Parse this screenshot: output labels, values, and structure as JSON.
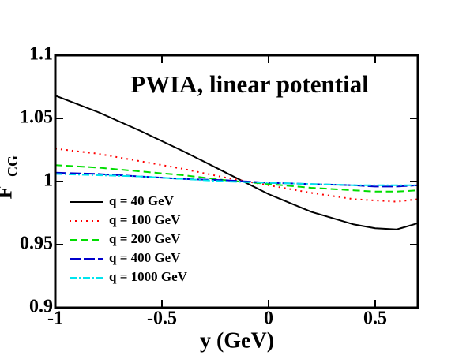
{
  "chart_data": {
    "type": "line",
    "title": "PWIA, linear potential",
    "xlabel": "y (GeV)",
    "ylabel": "F",
    "ylabel_sub": "CG",
    "x": [
      -1,
      -0.8,
      -0.6,
      -0.4,
      -0.2,
      0,
      0.2,
      0.4,
      0.5,
      0.6,
      0.7
    ],
    "series": [
      {
        "name": "q = 40 GeV",
        "color": "#000000",
        "dash": "none",
        "values": [
          1.068,
          1.055,
          1.04,
          1.024,
          1.007,
          0.99,
          0.976,
          0.966,
          0.963,
          0.962,
          0.967
        ]
      },
      {
        "name": "q = 100 GeV",
        "color": "#ff0000",
        "dash": "2,5",
        "values": [
          1.026,
          1.022,
          1.016,
          1.01,
          1.003,
          0.997,
          0.991,
          0.986,
          0.985,
          0.984,
          0.986
        ]
      },
      {
        "name": "q = 200 GeV",
        "color": "#00dd00",
        "dash": "9,5",
        "values": [
          1.013,
          1.011,
          1.008,
          1.005,
          1.001,
          0.998,
          0.995,
          0.993,
          0.992,
          0.992,
          0.993
        ]
      },
      {
        "name": "q = 400 GeV",
        "color": "#0000cc",
        "dash": "14,4",
        "values": [
          1.007,
          1.006,
          1.004,
          1.002,
          1.001,
          0.999,
          0.998,
          0.997,
          0.996,
          0.996,
          0.997
        ]
      },
      {
        "name": "q = 1000 GeV",
        "color": "#00e5ee",
        "dash": "9,3,2,3",
        "values": [
          1.006,
          1.005,
          1.004,
          1.002,
          1.0,
          0.999,
          0.998,
          0.997,
          0.997,
          0.997,
          0.997
        ]
      }
    ],
    "xlim": [
      -1,
      0.7
    ],
    "ylim": [
      0.9,
      1.1
    ],
    "xticks": [
      -1,
      -0.5,
      0,
      0.5
    ],
    "yticks": [
      0.9,
      0.95,
      1,
      1.05,
      1.1
    ],
    "legend": "lower left"
  }
}
